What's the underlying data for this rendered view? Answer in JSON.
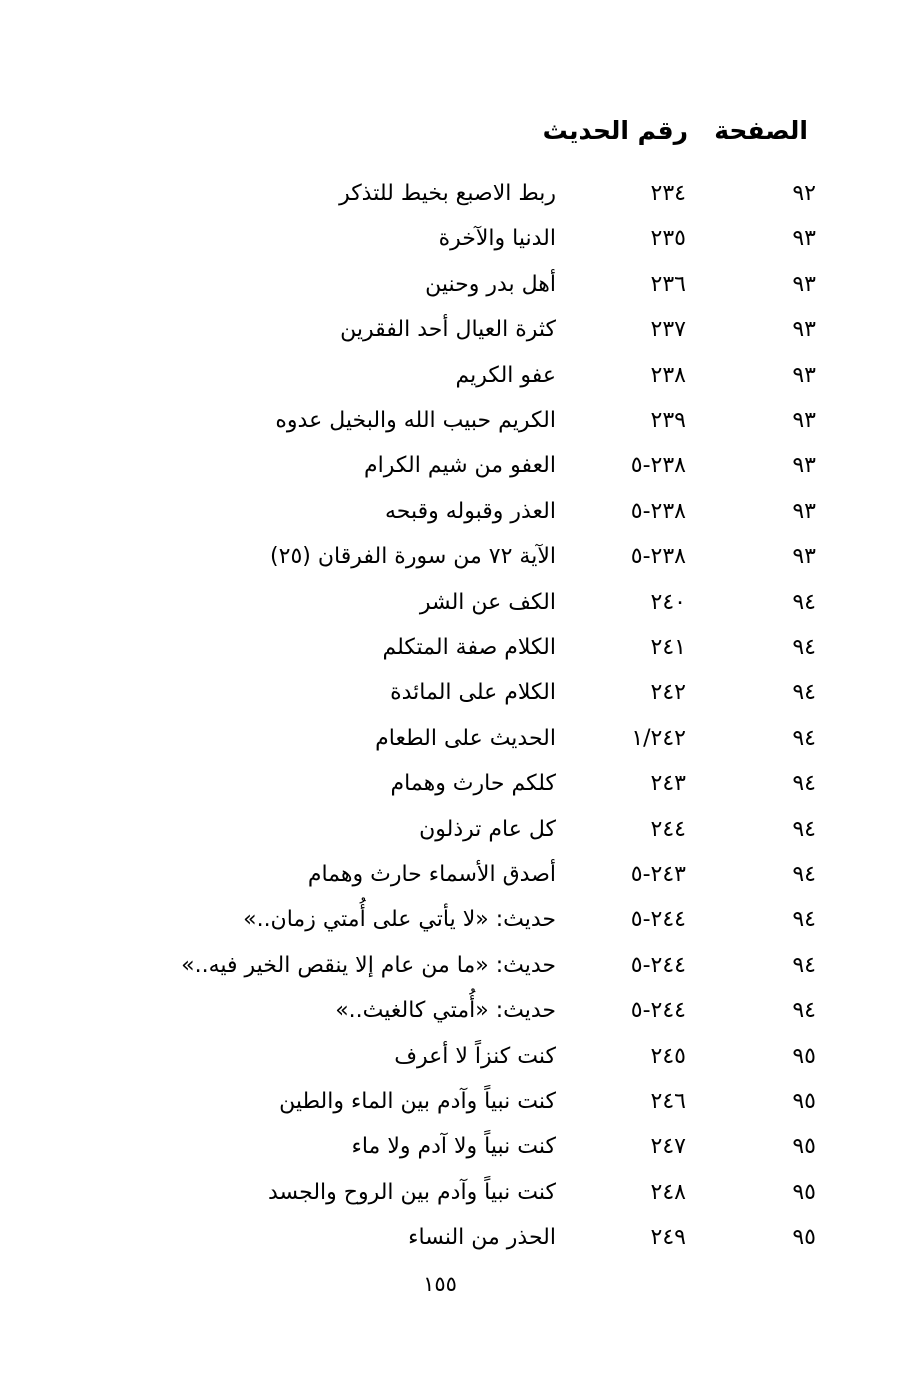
{
  "header": {
    "page_col": "الصفحة",
    "hadith_col": "رقم الحديث"
  },
  "rows": [
    {
      "page": "٩٢",
      "number": "٢٣٤",
      "title": "ربط الاصبع بخيط للتذكر"
    },
    {
      "page": "٩٣",
      "number": "٢٣٥",
      "title": "الدنيا والآخرة"
    },
    {
      "page": "٩٣",
      "number": "٢٣٦",
      "title": "أهل بدر وحنين"
    },
    {
      "page": "٩٣",
      "number": "٢٣٧",
      "title": "كثرة العيال أحد الفقرين"
    },
    {
      "page": "٩٣",
      "number": "٢٣٨",
      "title": "عفو الكريم"
    },
    {
      "page": "٩٣",
      "number": "٢٣٩",
      "title": "الكريم حبيب الله والبخيل عدوه"
    },
    {
      "page": "٩٣",
      "number": "٢٣٨-٥",
      "title": "العفو من شيم الكرام"
    },
    {
      "page": "٩٣",
      "number": "٢٣٨-٥",
      "title": "العذر وقبوله وقبحه"
    },
    {
      "page": "٩٣",
      "number": "٢٣٨-٥",
      "title": "الآية ٧٢ من سورة الفرقان (٢٥)"
    },
    {
      "page": "٩٤",
      "number": "٢٤٠",
      "title": "الكف عن الشر"
    },
    {
      "page": "٩٤",
      "number": "٢٤١",
      "title": "الكلام صفة المتكلم"
    },
    {
      "page": "٩٤",
      "number": "٢٤٢",
      "title": "الكلام على المائدة"
    },
    {
      "page": "٩٤",
      "number": "١/٢٤٢",
      "title": "الحديث على الطعام"
    },
    {
      "page": "٩٤",
      "number": "٢٤٣",
      "title": "كلكم حارث وهمام"
    },
    {
      "page": "٩٤",
      "number": "٢٤٤",
      "title": "كل عام ترذلون"
    },
    {
      "page": "٩٤",
      "number": "٢٤٣-٥",
      "title": "أصدق الأسماء حارث وهمام"
    },
    {
      "page": "٩٤",
      "number": "٢٤٤-٥",
      "title": "حديث: «لا يأتي على أُمتي زمان..»"
    },
    {
      "page": "٩٤",
      "number": "٢٤٤-٥",
      "title": "حديث: «ما من عام إلا ينقص الخير فيه..»"
    },
    {
      "page": "٩٤",
      "number": "٢٤٤-٥",
      "title": "حديث: «أُمتي كالغيث..»"
    },
    {
      "page": "٩٥",
      "number": "٢٤٥",
      "title": "كنت كنزاً لا أعرف"
    },
    {
      "page": "٩٥",
      "number": "٢٤٦",
      "title": "كنت نبياً وآدم بين الماء والطين"
    },
    {
      "page": "٩٥",
      "number": "٢٤٧",
      "title": "كنت نبياً ولا آدم ولا ماء"
    },
    {
      "page": "٩٥",
      "number": "٢٤٨",
      "title": "كنت نبياً وآدم بين الروح والجسد"
    },
    {
      "page": "٩٥",
      "number": "٢٤٩",
      "title": "الحذر من النساء"
    }
  ],
  "footer": {
    "page_number": "١٥٥"
  }
}
